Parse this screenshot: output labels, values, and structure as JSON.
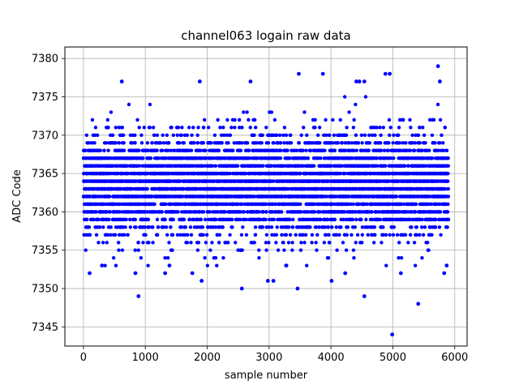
{
  "chart_data": {
    "type": "scatter",
    "title": "channel063 logain raw data",
    "xlabel": "sample number",
    "ylabel": "ADC Code",
    "xlim": [
      -300,
      6200
    ],
    "ylim": [
      7342.5,
      7381.5
    ],
    "xticks": [
      0,
      1000,
      2000,
      3000,
      4000,
      5000,
      6000
    ],
    "yticks": [
      7345,
      7350,
      7355,
      7360,
      7365,
      7370,
      7375,
      7380
    ],
    "grid": true,
    "marker_color": "#0000ff",
    "n_samples": 5900,
    "typical_range": [
      7355,
      7372
    ],
    "outliers": [
      {
        "x": 4990,
        "y": 7344
      },
      {
        "x": 5410,
        "y": 7348
      },
      {
        "x": 890,
        "y": 7349
      },
      {
        "x": 4540,
        "y": 7349
      },
      {
        "x": 2560,
        "y": 7350
      },
      {
        "x": 3460,
        "y": 7350
      },
      {
        "x": 1910,
        "y": 7351
      },
      {
        "x": 2980,
        "y": 7351
      },
      {
        "x": 3070,
        "y": 7351
      },
      {
        "x": 4010,
        "y": 7351
      },
      {
        "x": 100,
        "y": 7352
      },
      {
        "x": 840,
        "y": 7352
      },
      {
        "x": 1320,
        "y": 7352
      },
      {
        "x": 1760,
        "y": 7352
      },
      {
        "x": 4230,
        "y": 7352
      },
      {
        "x": 5130,
        "y": 7352
      },
      {
        "x": 5830,
        "y": 7352
      },
      {
        "x": 5870,
        "y": 7353
      },
      {
        "x": 300,
        "y": 7353
      },
      {
        "x": 1390,
        "y": 7353
      },
      {
        "x": 3280,
        "y": 7353
      },
      {
        "x": 4540,
        "y": 7377
      },
      {
        "x": 4410,
        "y": 7377
      },
      {
        "x": 4460,
        "y": 7377
      },
      {
        "x": 620,
        "y": 7377
      },
      {
        "x": 1880,
        "y": 7377
      },
      {
        "x": 2700,
        "y": 7377
      },
      {
        "x": 5760,
        "y": 7377
      },
      {
        "x": 3480,
        "y": 7378
      },
      {
        "x": 3870,
        "y": 7378
      },
      {
        "x": 4880,
        "y": 7378
      },
      {
        "x": 4950,
        "y": 7378
      },
      {
        "x": 5730,
        "y": 7379
      }
    ]
  }
}
